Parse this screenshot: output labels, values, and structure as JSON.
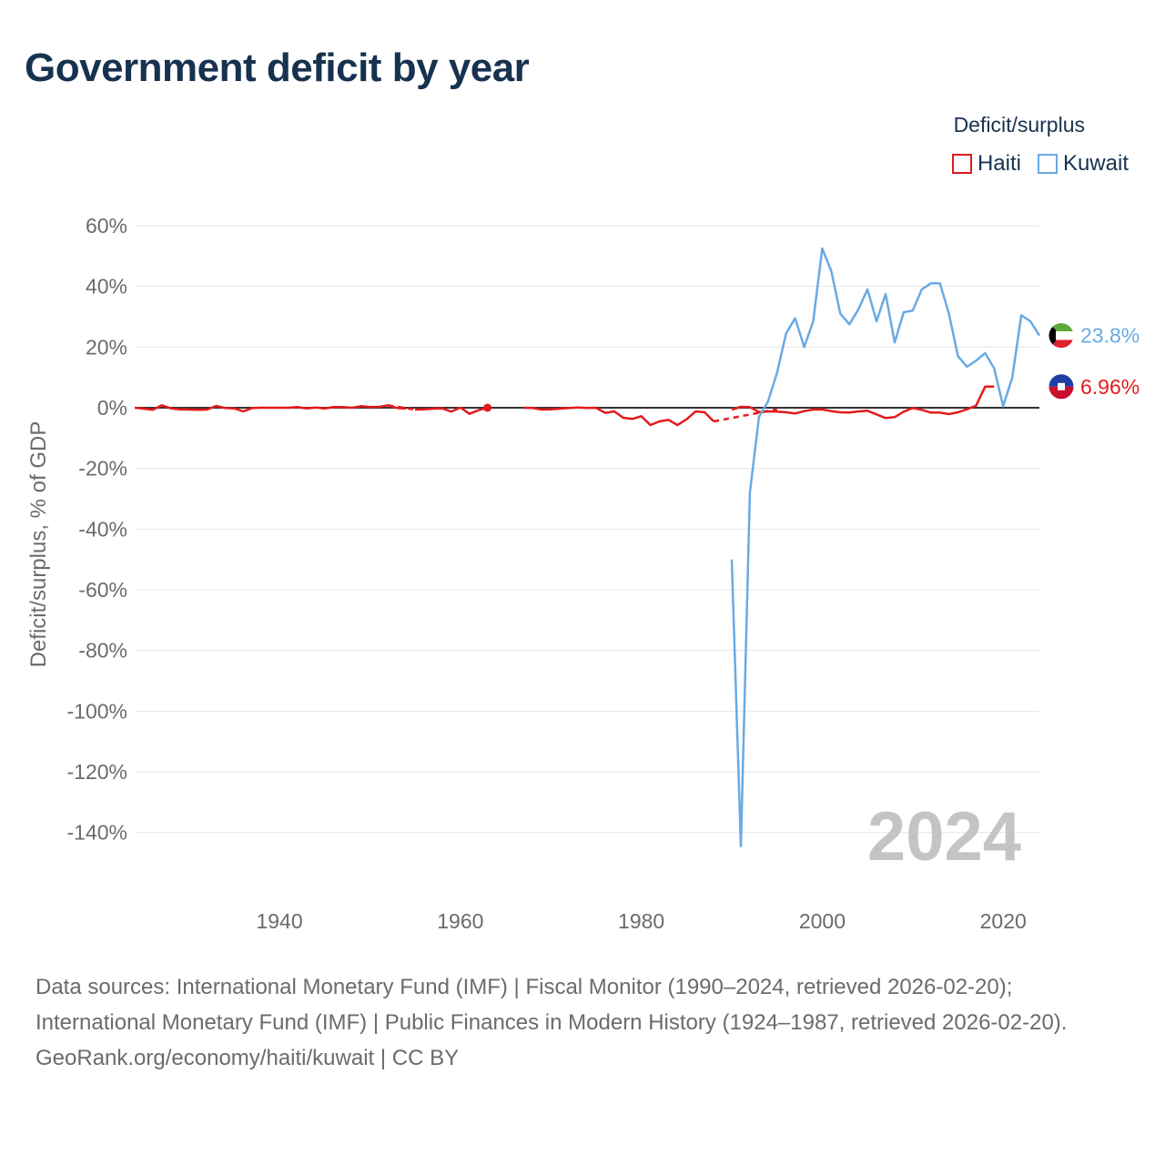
{
  "title": "Government deficit by year",
  "legend": {
    "title": "Deficit/surplus",
    "items": [
      {
        "name": "Haiti",
        "color": "#e31a1c"
      },
      {
        "name": "Kuwait",
        "color": "#6aaae4"
      }
    ]
  },
  "footer": {
    "sources_line": "Data sources: International Monetary Fund (IMF) | Fiscal Monitor (1990–2024, retrieved 2026-02-20); International Monetary Fund (IMF) | Public Finances in Modern History (1924–1987, retrieved 2026-02-20).",
    "link_line": "GeoRank.org/economy/haiti/kuwait | CC BY"
  },
  "chart_data": {
    "type": "line",
    "title": "Government deficit by year",
    "xlabel": "",
    "ylabel": "Deficit/surplus, % of GDP",
    "xlim": [
      1924,
      2024
    ],
    "ylim": [
      -160,
      65
    ],
    "yticks": [
      60,
      40,
      20,
      0,
      -20,
      -40,
      -60,
      -80,
      -100,
      -120,
      -140
    ],
    "ytick_labels": [
      "60%",
      "40%",
      "20%",
      "0%",
      "-20%",
      "-40%",
      "-60%",
      "-80%",
      "-100%",
      "-120%",
      "-140%"
    ],
    "xticks": [
      1940,
      1960,
      1980,
      2000,
      2020
    ],
    "xtick_labels": [
      "1940",
      "1960",
      "1980",
      "2000",
      "2020"
    ],
    "year_watermark": "2024",
    "grid": true,
    "series": [
      {
        "name": "Haiti",
        "color": "#e31a1c",
        "end_label": "6.96%",
        "flag": "haiti-flag",
        "segments": [
          [
            [
              1924,
              0
            ],
            [
              1925,
              -0.3
            ],
            [
              1926,
              -0.7
            ],
            [
              1927,
              0.8
            ],
            [
              1928,
              -0.2
            ],
            [
              1929,
              -0.5
            ],
            [
              1930,
              -0.6
            ],
            [
              1931,
              -0.7
            ],
            [
              1932,
              -0.6
            ],
            [
              1933,
              0.6
            ],
            [
              1934,
              -0.1
            ],
            [
              1935,
              -0.2
            ],
            [
              1936,
              -1.2
            ],
            [
              1937,
              -0.1
            ],
            [
              1938,
              0
            ],
            [
              1939,
              0
            ],
            [
              1940,
              0
            ],
            [
              1941,
              0
            ],
            [
              1942,
              0.2
            ],
            [
              1943,
              -0.2
            ],
            [
              1944,
              0.1
            ],
            [
              1945,
              -0.2
            ],
            [
              1946,
              0.2
            ],
            [
              1947,
              0.2
            ],
            [
              1948,
              0
            ],
            [
              1949,
              0.5
            ],
            [
              1950,
              0.2
            ],
            [
              1951,
              0.3
            ],
            [
              1952,
              0.8
            ],
            [
              1953,
              -0.1
            ],
            [
              1954,
              -0.3
            ]
          ],
          [
            [
              1955,
              -0.6
            ],
            [
              1956,
              -0.5
            ],
            [
              1957,
              -0.3
            ],
            [
              1958,
              -0.2
            ],
            [
              1959,
              -1.3
            ],
            [
              1960,
              0.1
            ]
          ],
          [
            [
              1960,
              0.1
            ],
            [
              1961,
              -2
            ],
            [
              1962,
              -0.8
            ],
            [
              1963,
              0
            ]
          ],
          [
            [
              1967,
              0
            ],
            [
              1968,
              -0.1
            ],
            [
              1969,
              -0.6
            ],
            [
              1970,
              -0.5
            ],
            [
              1971,
              -0.3
            ],
            [
              1972,
              -0.1
            ],
            [
              1973,
              0.1
            ],
            [
              1974,
              -0.1
            ],
            [
              1975,
              0
            ],
            [
              1976,
              -1.7
            ],
            [
              1977,
              -1.2
            ],
            [
              1978,
              -3.3
            ],
            [
              1979,
              -3.7
            ],
            [
              1980,
              -2.8
            ],
            [
              1981,
              -5.7
            ],
            [
              1982,
              -4.5
            ],
            [
              1983,
              -4
            ],
            [
              1984,
              -5.7
            ],
            [
              1985,
              -3.8
            ],
            [
              1986,
              -1.2
            ],
            [
              1987,
              -1.5
            ],
            [
              1988,
              -4.5
            ]
          ],
          [
            [
              1990,
              -0.6
            ],
            [
              1991,
              0.3
            ],
            [
              1992,
              0.2
            ],
            [
              1993,
              -1.4
            ],
            [
              1994,
              -1.2
            ],
            [
              1995,
              -1.3
            ],
            [
              1996,
              -1.5
            ],
            [
              1997,
              -1.9
            ],
            [
              1998,
              -1.1
            ],
            [
              1999,
              -0.6
            ],
            [
              2000,
              -0.6
            ],
            [
              2001,
              -1.1
            ],
            [
              2002,
              -1.5
            ],
            [
              2003,
              -1.6
            ],
            [
              2004,
              -1.2
            ],
            [
              2005,
              -1
            ],
            [
              2006,
              -2.2
            ],
            [
              2007,
              -3.4
            ],
            [
              2008,
              -3.1
            ],
            [
              2009,
              -1.3
            ],
            [
              2010,
              -0.1
            ],
            [
              2011,
              -0.7
            ],
            [
              2012,
              -1.6
            ],
            [
              2013,
              -1.6
            ],
            [
              2014,
              -2.1
            ],
            [
              2015,
              -1.5
            ],
            [
              2016,
              -0.5
            ],
            [
              2017,
              0.7
            ],
            [
              2018,
              6.96
            ],
            [
              2019,
              6.96
            ]
          ]
        ],
        "dashed_gaps": [
          [
            [
              1952,
              0.8
            ],
            [
              1955,
              -0.6
            ]
          ],
          [
            [
              1988,
              -4.5
            ],
            [
              1995,
              -0.5
            ]
          ]
        ],
        "points": [
          [
            1963,
            0
          ]
        ]
      },
      {
        "name": "Kuwait",
        "color": "#6aaae4",
        "end_label": "23.8%",
        "flag": "kuwait-flag",
        "segments": [
          [
            [
              1990,
              -50
            ],
            [
              1991,
              -144.5
            ],
            [
              1992,
              -28
            ],
            [
              1993,
              -3
            ],
            [
              1994,
              2
            ],
            [
              1995,
              11.5
            ],
            [
              1996,
              24.5
            ],
            [
              1997,
              29.5
            ],
            [
              1998,
              20
            ],
            [
              1999,
              28.5
            ],
            [
              2000,
              52.5
            ],
            [
              2001,
              45
            ],
            [
              2002,
              31
            ],
            [
              2003,
              27.5
            ],
            [
              2004,
              32.5
            ],
            [
              2005,
              39
            ],
            [
              2006,
              28.5
            ],
            [
              2007,
              37.5
            ],
            [
              2008,
              21.5
            ],
            [
              2009,
              31.5
            ],
            [
              2010,
              32
            ],
            [
              2011,
              39
            ],
            [
              2012,
              41
            ],
            [
              2013,
              41
            ],
            [
              2014,
              31
            ],
            [
              2015,
              17
            ],
            [
              2016,
              13.5
            ],
            [
              2017,
              15.5
            ],
            [
              2018,
              18
            ],
            [
              2019,
              13
            ],
            [
              2020,
              0.5
            ],
            [
              2021,
              10
            ],
            [
              2022,
              30.5
            ],
            [
              2023,
              28.5
            ],
            [
              2024,
              23.8
            ]
          ]
        ]
      }
    ]
  }
}
